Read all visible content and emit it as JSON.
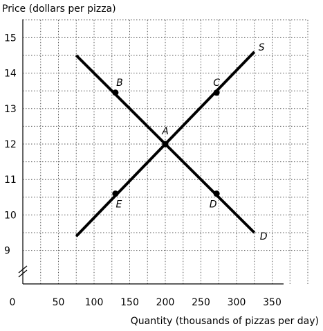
{
  "chart_data": {
    "type": "line",
    "ylabel": "Price (dollars per pizza)",
    "xlabel": "Quantity (thousands of pizzas per day)",
    "x_ticks": [
      0,
      50,
      100,
      150,
      200,
      250,
      300,
      350
    ],
    "y_ticks": [
      9,
      10,
      11,
      12,
      13,
      14,
      15
    ],
    "xlim": [
      0,
      400
    ],
    "ylim": [
      8.5,
      15.5
    ],
    "y_axis_break": true,
    "grid": true,
    "series": [
      {
        "name": "S",
        "points": [
          [
            75,
            9.4
          ],
          [
            325,
            14.6
          ]
        ]
      },
      {
        "name": "D",
        "points": [
          [
            75,
            14.5
          ],
          [
            325,
            9.5
          ]
        ]
      }
    ],
    "labeled_points": [
      {
        "label": "A",
        "x": 200,
        "y": 12.0
      },
      {
        "label": "B",
        "x": 130,
        "y": 13.45
      },
      {
        "label": "C",
        "x": 272,
        "y": 13.45
      },
      {
        "label": "D",
        "x": 272,
        "y": 10.6
      },
      {
        "label": "E",
        "x": 130,
        "y": 10.6
      }
    ]
  }
}
